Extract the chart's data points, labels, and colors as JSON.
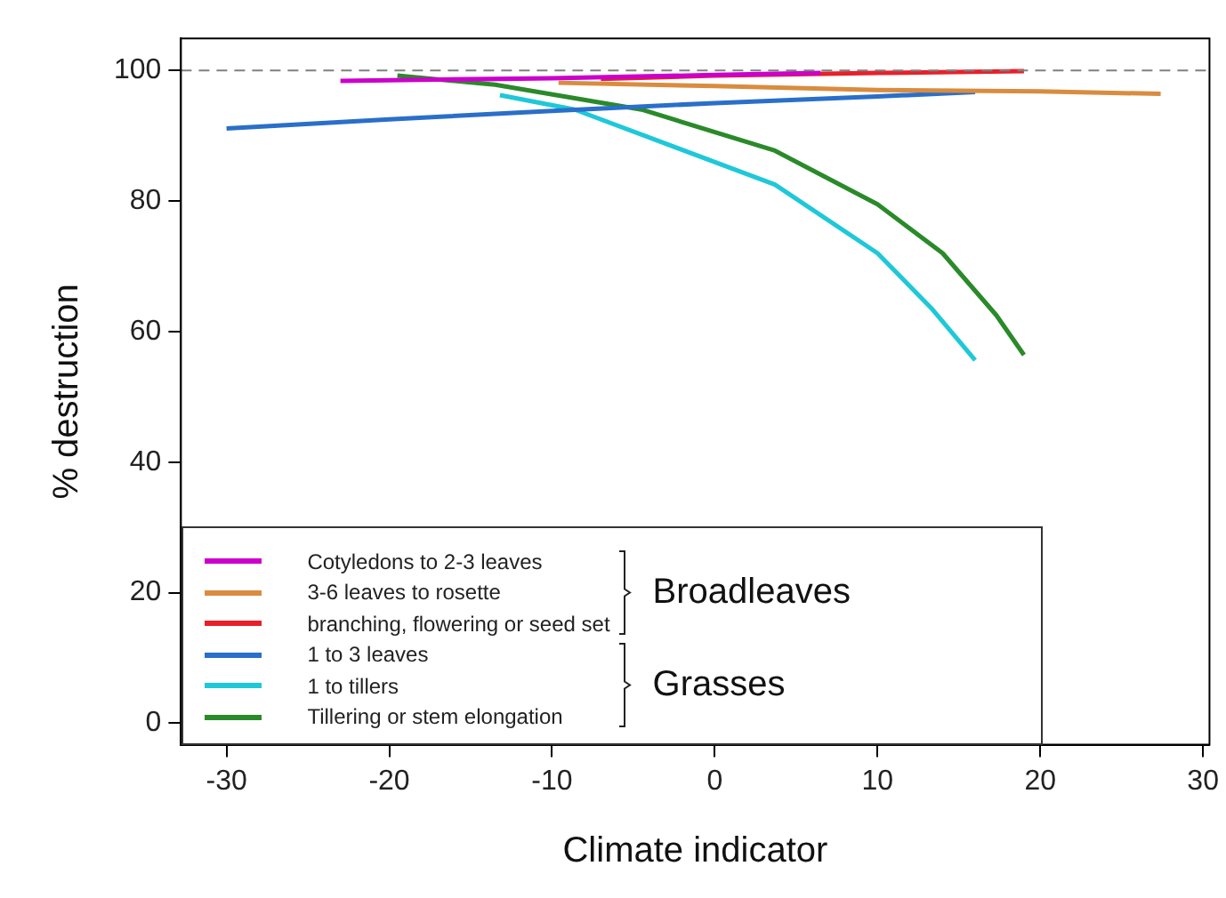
{
  "chart_data": {
    "type": "line",
    "xlabel": "Climate indicator",
    "ylabel": "% destruction",
    "xlim": [
      -32.8,
      30.4
    ],
    "ylim": [
      -3.3,
      104.9
    ],
    "xticks": [
      -30,
      -20,
      -10,
      0,
      10,
      20,
      30
    ],
    "yticks": [
      0,
      20,
      40,
      60,
      80,
      100
    ],
    "grid": false,
    "legend": "bottom left",
    "marker": "none",
    "line_style": "solid",
    "annotations": [
      "Broadleaves",
      "Grasses"
    ],
    "ref_lines": [
      {
        "axis": "y",
        "value": 100,
        "color": "#808080",
        "line_style": "dashed"
      }
    ],
    "series": [
      {
        "name": "Cotyledons to 2-3 leaves",
        "color": "#cc00cc",
        "x": [
          -23,
          -10,
          0,
          6.5
        ],
        "values": [
          98.4,
          98.8,
          99.3,
          99.6
        ]
      },
      {
        "name": "3-6 leaves to rosette",
        "color": "#d98c3f",
        "x": [
          -9.6,
          0,
          10,
          20,
          27.4
        ],
        "values": [
          98.1,
          97.6,
          97.0,
          96.8,
          96.4
        ]
      },
      {
        "name": "branching, flowering or seed set",
        "color": "#e8202a",
        "x": [
          -7,
          0,
          10,
          19
        ],
        "values": [
          98.7,
          99.2,
          99.6,
          99.9
        ]
      },
      {
        "name": "1 to 3 leaves",
        "color": "#2a6fc9",
        "x": [
          -30,
          -20,
          -10,
          0,
          10,
          16
        ],
        "values": [
          91.1,
          92.5,
          93.8,
          95.0,
          96.0,
          96.7
        ]
      },
      {
        "name": "1 to tillers",
        "color": "#1fc8d8",
        "x": [
          -13.2,
          -8.6,
          3.7,
          10,
          13.3,
          16
        ],
        "values": [
          96.2,
          94.0,
          82.5,
          72,
          63.6,
          55.6
        ]
      },
      {
        "name": "Tillering or stem elongation",
        "color": "#2a8a2a",
        "x": [
          -19.5,
          -13.5,
          -4.5,
          3.7,
          10,
          14,
          17.3,
          19
        ],
        "values": [
          99.2,
          97.8,
          94.0,
          87.7,
          79.5,
          72,
          62.5,
          56.4
        ]
      }
    ]
  }
}
